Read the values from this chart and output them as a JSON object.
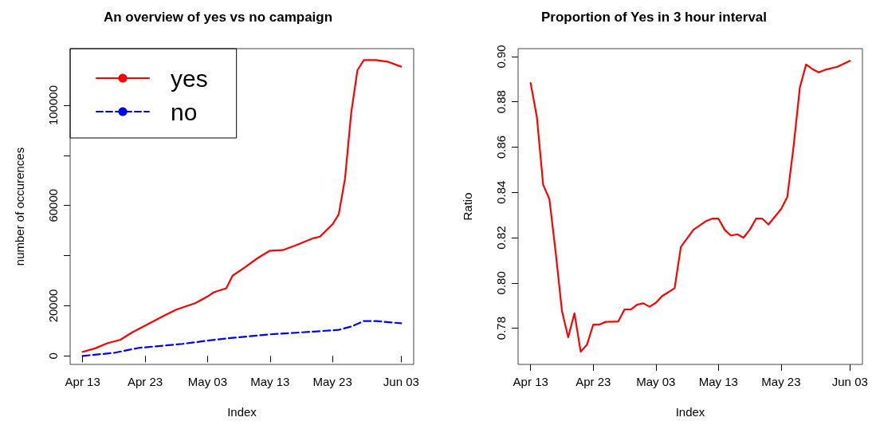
{
  "chart_data": [
    {
      "type": "line",
      "title": "An overview of yes vs no campaign",
      "xlabel": "Index",
      "ylabel": "number of occurences",
      "xlim": [
        "--04-11",
        "--06-05"
      ],
      "xticks": [
        {
          "value": "--04-13",
          "label": "Apr 13"
        },
        {
          "value": "--04-23",
          "label": "Apr 23"
        },
        {
          "value": "--05-03",
          "label": "May 03"
        },
        {
          "value": "--05-13",
          "label": "May 13"
        },
        {
          "value": "--05-23",
          "label": "May 23"
        },
        {
          "value": "--06-03",
          "label": "Jun 03"
        }
      ],
      "ylim": [
        -3400,
        122600
      ],
      "yticks": [
        0,
        20000,
        {
          "value": 40000,
          "label": null
        },
        60000,
        {
          "value": 80000,
          "label": null
        },
        100000
      ],
      "legend": "top left",
      "grid": false,
      "series": [
        {
          "name": "yes",
          "color": "#ff0000",
          "line_style": "solid",
          "x": [
            "--04-13",
            "--04-15",
            "--04-17",
            "--04-19",
            "--04-21",
            "--04-24",
            "--04-26",
            "--04-28",
            "--05-01",
            "--05-03",
            "--05-04",
            "--05-06",
            "--05-07",
            "--05-09",
            "--05-11",
            "--05-13",
            "--05-15",
            "--05-17",
            "--05-20",
            "--05-21",
            "--05-23",
            "--05-24",
            "--05-25",
            "--05-26",
            "--05-27",
            "--05-28",
            "--05-30",
            "--06-01",
            "--06-03"
          ],
          "values": [
            1600,
            3000,
            5100,
            6400,
            9500,
            13400,
            16000,
            18500,
            21000,
            23700,
            25400,
            27000,
            32000,
            35400,
            39000,
            42000,
            42200,
            44000,
            47000,
            47600,
            52500,
            56500,
            70600,
            97000,
            114000,
            118000,
            118000,
            117300,
            115400
          ]
        },
        {
          "name": "no",
          "color": "#0000ff",
          "line_style": "dashed",
          "x": [
            "--04-13",
            "--04-18",
            "--04-22",
            "--04-29",
            "--05-03",
            "--05-07",
            "--05-13",
            "--05-20",
            "--05-24",
            "--05-26",
            "--05-28",
            "--05-30",
            "--06-03"
          ],
          "values": [
            0,
            1200,
            3200,
            4800,
            6100,
            7200,
            8600,
            9700,
            10400,
            11700,
            13900,
            13900,
            13000
          ]
        }
      ]
    },
    {
      "type": "line",
      "title": "Proportion of Yes in 3 hour interval",
      "xlabel": "Index",
      "ylabel": "Ratio",
      "xlim": [
        "--04-11",
        "--06-05"
      ],
      "xticks": [
        {
          "value": "--04-13",
          "label": "Apr 13"
        },
        {
          "value": "--04-23",
          "label": "Apr 23"
        },
        {
          "value": "--05-03",
          "label": "May 03"
        },
        {
          "value": "--05-13",
          "label": "May 13"
        },
        {
          "value": "--05-23",
          "label": "May 23"
        },
        {
          "value": "--06-03",
          "label": "Jun 03"
        }
      ],
      "ylim": [
        0.764,
        0.9035
      ],
      "yticks": [
        {
          "value": 0.78,
          "label": "0.78"
        },
        {
          "value": 0.8,
          "label": "0.80"
        },
        {
          "value": 0.82,
          "label": "0.82"
        },
        {
          "value": 0.84,
          "label": "0.84"
        },
        {
          "value": 0.86,
          "label": "0.86"
        },
        {
          "value": 0.88,
          "label": "0.88"
        },
        {
          "value": 0.9,
          "label": "0.90"
        }
      ],
      "legend": false,
      "grid": false,
      "series": [
        {
          "color": "#ff0000",
          "line_style": "solid",
          "x": [
            "--04-13",
            "--04-14",
            "--04-15",
            "--04-16",
            "--04-17",
            "--04-18",
            "--04-19",
            "--04-20",
            "--04-21",
            "--04-22",
            "--04-23",
            "--04-24",
            "--04-25",
            "--04-27",
            "--04-28",
            "--04-29",
            "--04-30",
            "--05-01",
            "--05-02",
            "--05-03",
            "--05-04",
            "--05-05",
            "--05-06",
            "--05-07",
            "--05-09",
            "--05-11",
            "--05-12",
            "--05-13",
            "--05-14",
            "--05-15",
            "--05-16",
            "--05-17",
            "--05-18",
            "--05-19",
            "--05-20",
            "--05-21",
            "--05-23",
            "--05-24",
            "--05-25",
            "--05-26",
            "--05-27",
            "--05-28",
            "--05-29",
            "--05-30",
            "--06-01",
            "--06-03"
          ],
          "values": [
            0.8883,
            0.8733,
            0.8434,
            0.837,
            0.8135,
            0.7877,
            0.776,
            0.7866,
            0.7696,
            0.7727,
            0.7816,
            0.7816,
            0.7828,
            0.783,
            0.7883,
            0.7883,
            0.7904,
            0.791,
            0.7895,
            0.7912,
            0.7942,
            0.7959,
            0.7977,
            0.8159,
            0.8235,
            0.8273,
            0.8284,
            0.8284,
            0.8235,
            0.8209,
            0.8215,
            0.82,
            0.8235,
            0.8284,
            0.8284,
            0.8258,
            0.8326,
            0.838,
            0.8603,
            0.8863,
            0.8965,
            0.8945,
            0.893,
            0.8941,
            0.8955,
            0.8981
          ]
        }
      ]
    }
  ]
}
